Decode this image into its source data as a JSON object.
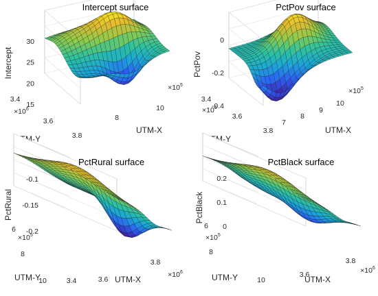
{
  "figure": {
    "colormap": [
      "#3e26a8",
      "#2c5ef4",
      "#1ba4d9",
      "#2cc2a0",
      "#8fcb4a",
      "#e5b92f",
      "#f9fb15"
    ],
    "grid": true,
    "box": true,
    "mesh_edge_color": "#1a1a1a"
  },
  "chart_data": [
    {
      "type": "surface",
      "title": "Intercept surface",
      "zlabel": "Intercept",
      "xlabel": "UTM-X",
      "ylabel": "UTM-Y",
      "x_multiplier": "×10",
      "x_multiplier_exp": "5",
      "y_multiplier": "×10",
      "y_multiplier_exp": "6",
      "xlim": [
        6,
        10.5
      ],
      "ylim": [
        3.4,
        3.9
      ],
      "zlim": [
        15,
        30
      ],
      "zticks": [
        "15",
        "20",
        "25",
        "30"
      ],
      "xticks": [
        "8",
        "10"
      ],
      "yticks": [
        "3.4",
        "3.6",
        "3.8"
      ],
      "surface": {
        "base": 23,
        "peaks": [
          {
            "x": 0.62,
            "y": 0.6,
            "h": 6.5,
            "s": 0.2
          },
          {
            "x": 0.22,
            "y": 0.72,
            "h": 2.5,
            "s": 0.18
          }
        ],
        "pits": [
          {
            "x": 0.58,
            "y": 0.22,
            "h": 8,
            "s": 0.16
          },
          {
            "x": 0.15,
            "y": 0.15,
            "h": 3,
            "s": 0.2
          }
        ],
        "tilt_x": 0,
        "tilt_y": 0
      }
    },
    {
      "type": "surface",
      "title": "PctPov surface",
      "zlabel": "PctPov",
      "xlabel": "UTM-X",
      "ylabel": "UTM-Y",
      "x_multiplier": "×10",
      "x_multiplier_exp": "5",
      "y_multiplier": "×10",
      "y_multiplier_exp": "6",
      "xlim": [
        6.5,
        10.5
      ],
      "ylim": [
        3.4,
        3.9
      ],
      "zlim": [
        -0.4,
        0
      ],
      "zticks": [
        "-0.4",
        "-0.2",
        "0"
      ],
      "xticks": [
        "7",
        "8",
        "9",
        "10"
      ],
      "yticks": [
        "3.4",
        "3.6",
        "3.8"
      ],
      "surface": {
        "base": -0.22,
        "peaks": [
          {
            "x": 0.55,
            "y": 0.55,
            "h": 0.17,
            "s": 0.18
          },
          {
            "x": 0.75,
            "y": 0.8,
            "h": 0.08,
            "s": 0.2
          }
        ],
        "pits": [
          {
            "x": 0.2,
            "y": 0.15,
            "h": 0.2,
            "s": 0.16
          },
          {
            "x": 0.5,
            "y": 0.25,
            "h": 0.08,
            "s": 0.15
          }
        ],
        "tilt_x": 0,
        "tilt_y": 0
      }
    },
    {
      "type": "surface",
      "title": "PctRural surface",
      "zlabel": "PctRural",
      "xlabel": "UTM-X",
      "ylabel": "UTM-Y",
      "x_multiplier": "×10",
      "x_multiplier_exp": "6",
      "y_multiplier": "×10",
      "y_multiplier_exp": "5",
      "xlim": [
        3.4,
        3.9
      ],
      "ylim": [
        6,
        10.5
      ],
      "zlim": [
        -0.25,
        -0.1
      ],
      "zticks": [
        "-0.2",
        "-0.15",
        "-0.1"
      ],
      "xticks": [
        "3.4",
        "3.6",
        "3.8"
      ],
      "yticks": [
        "6",
        "8",
        "10"
      ],
      "surface": {
        "base": -0.16,
        "peaks": [
          {
            "x": 0.25,
            "y": 0.5,
            "h": 0.05,
            "s": 0.25
          }
        ],
        "pits": [
          {
            "x": 0.7,
            "y": 0.3,
            "h": 0.09,
            "s": 0.15
          }
        ],
        "tilt_x": -0.02,
        "tilt_y": 0
      }
    },
    {
      "type": "surface",
      "title": "PctBlack surface",
      "zlabel": "PctBlack",
      "xlabel": "UTM-X",
      "ylabel": "UTM-Y",
      "x_multiplier": "×10",
      "x_multiplier_exp": "6",
      "y_multiplier": "×10",
      "y_multiplier_exp": "5",
      "xlim": [
        3.4,
        3.9
      ],
      "ylim": [
        6,
        10.5
      ],
      "zlim": [
        -0.1,
        0.2
      ],
      "zticks": [
        "0",
        "0.1",
        "0.2"
      ],
      "xticks": [
        "3.6",
        "3.8"
      ],
      "yticks": [
        "6",
        "8",
        "10"
      ],
      "surface": {
        "base": 0.05,
        "peaks": [
          {
            "x": 0.2,
            "y": 0.45,
            "h": 0.1,
            "s": 0.25
          }
        ],
        "pits": [
          {
            "x": 0.7,
            "y": 0.35,
            "h": 0.12,
            "s": 0.18
          },
          {
            "x": 0.8,
            "y": 0.8,
            "h": 0.05,
            "s": 0.2
          }
        ],
        "tilt_x": 0,
        "tilt_y": 0
      }
    }
  ]
}
